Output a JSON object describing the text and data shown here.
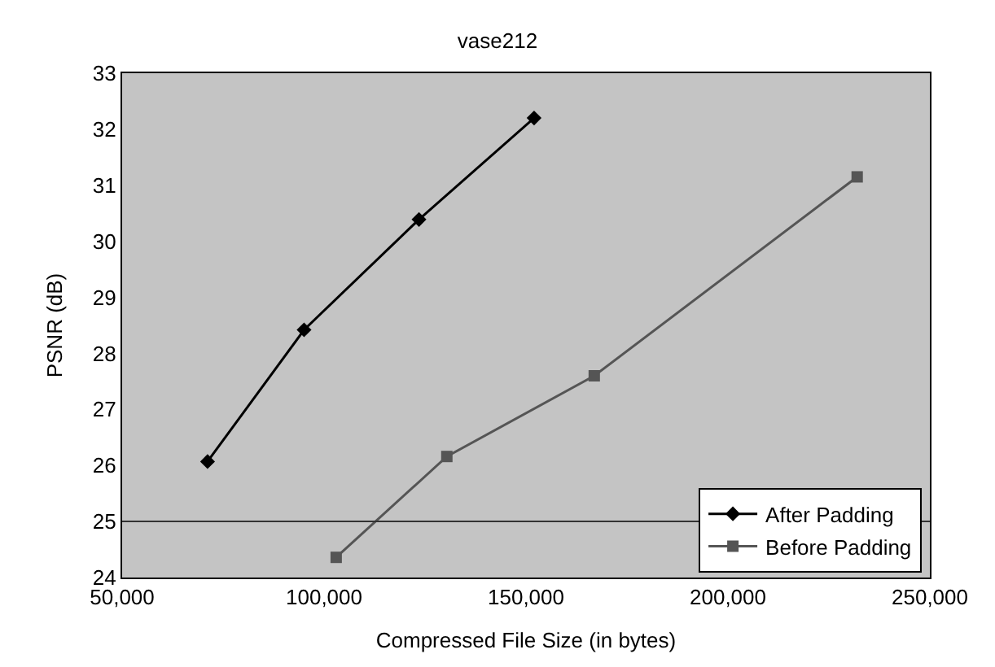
{
  "chart_data": {
    "type": "line",
    "title": "vase212",
    "xlabel": "Compressed File Size (in bytes)",
    "ylabel": "PSNR (dB)",
    "series": [
      {
        "name": "After Padding",
        "color": "#000000",
        "x": [
          71150,
          95050,
          123500,
          152000
        ],
        "values": [
          26.07,
          28.42,
          30.39,
          32.2
        ],
        "marker": "diamond",
        "line_style": "solid"
      },
      {
        "name": "Before Padding",
        "color": "#555555",
        "x": [
          103000,
          130400,
          166900,
          232000
        ],
        "values": [
          24.36,
          26.16,
          27.6,
          31.15
        ],
        "marker": "square",
        "line_style": "solid"
      }
    ],
    "xlim": [
      50000,
      250000
    ],
    "xticks": [
      {
        "value": 50000,
        "label": "50,000"
      },
      {
        "value": 100000,
        "label": "100,000"
      },
      {
        "value": 150000,
        "label": "150,000"
      },
      {
        "value": 200000,
        "label": "200,000"
      },
      {
        "value": 250000,
        "label": "250,000"
      }
    ],
    "ylim": [
      24,
      33
    ],
    "yticks": [
      24,
      25,
      26,
      27,
      28,
      29,
      30,
      31,
      32,
      33
    ],
    "ref_lines": [
      {
        "axis": "y",
        "value": 25,
        "color": "#333333"
      }
    ],
    "grid": false,
    "legend": "bottom right"
  }
}
